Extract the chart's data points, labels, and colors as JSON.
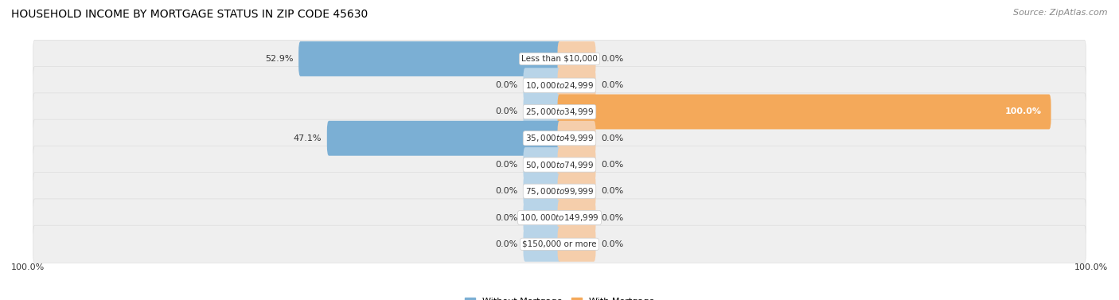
{
  "title": "HOUSEHOLD INCOME BY MORTGAGE STATUS IN ZIP CODE 45630",
  "source": "Source: ZipAtlas.com",
  "categories": [
    "Less than $10,000",
    "$10,000 to $24,999",
    "$25,000 to $34,999",
    "$35,000 to $49,999",
    "$50,000 to $74,999",
    "$75,000 to $99,999",
    "$100,000 to $149,999",
    "$150,000 or more"
  ],
  "without_mortgage": [
    52.9,
    0.0,
    0.0,
    47.1,
    0.0,
    0.0,
    0.0,
    0.0
  ],
  "with_mortgage": [
    0.0,
    0.0,
    100.0,
    0.0,
    0.0,
    0.0,
    0.0,
    0.0
  ],
  "without_mortgage_color": "#7bafd4",
  "without_mortgage_stub_color": "#b8d4e8",
  "with_mortgage_color": "#f4a95a",
  "with_mortgage_stub_color": "#f5ceab",
  "row_bg_color": "#efefef",
  "row_alt_bg_color": "#f7f7f7",
  "row_border_color": "#d8d8d8",
  "max_val": 100,
  "stub_val": 7,
  "figsize": [
    14.06,
    3.77
  ],
  "dpi": 100,
  "background_color": "#ffffff",
  "title_fontsize": 10,
  "label_fontsize": 8,
  "cat_fontsize": 7.5,
  "legend_fontsize": 8,
  "source_fontsize": 8,
  "axis_label_left": "100.0%",
  "axis_label_right": "100.0%"
}
